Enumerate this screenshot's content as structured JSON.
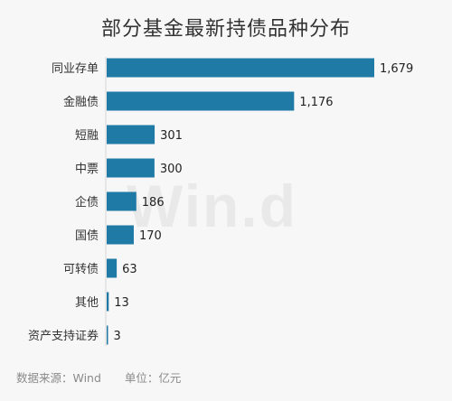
{
  "chart_data": {
    "type": "bar",
    "orientation": "horizontal",
    "title": "部分基金最新持债品种分布",
    "categories": [
      "同业存单",
      "金融债",
      "短融",
      "中票",
      "企债",
      "国债",
      "可转债",
      "其他",
      "资产支持证券"
    ],
    "values": [
      1679,
      1176,
      301,
      300,
      186,
      170,
      63,
      13,
      3
    ],
    "value_labels": [
      "1,679",
      "1,176",
      "301",
      "300",
      "186",
      "170",
      "63",
      "13",
      "3"
    ],
    "bar_color": "#1f7aa6",
    "xlim": [
      0,
      1679
    ],
    "grid": false,
    "legend": "none"
  },
  "footer": {
    "source": "数据来源：Wind",
    "unit": "单位：亿元"
  },
  "watermark": "Win.d"
}
